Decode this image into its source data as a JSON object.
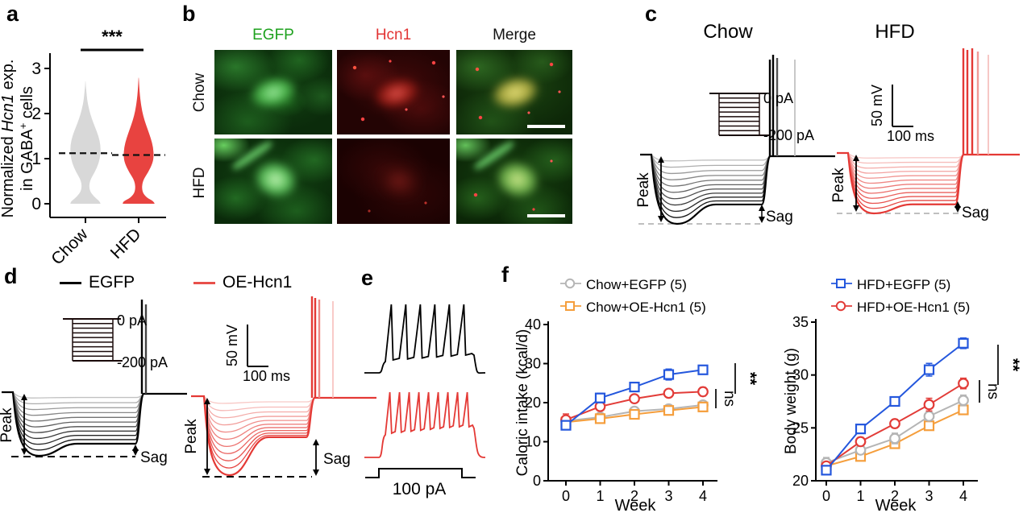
{
  "panel_a": {
    "label": "a",
    "ylabel_line1_pre": "Normalized ",
    "ylabel_gene": "Hcn1",
    "ylabel_line1_post": " exp.",
    "ylabel_line2_pre": "in GABA",
    "ylabel_line2_sup": "+",
    "ylabel_line2_post": " cells"
  },
  "panel_b": {
    "label": "b",
    "columns": [
      {
        "text": "EGFP",
        "color": "#1ea11e"
      },
      {
        "text": "Hcn1",
        "color": "#e23434"
      },
      {
        "text": "Merge",
        "color": "#111111"
      }
    ],
    "rows": [
      "Chow",
      "HFD"
    ]
  },
  "panel_c": {
    "label": "c",
    "title_left": "Chow",
    "title_right": "HFD",
    "step_label_top": "0 pA",
    "step_label_bottom": "-200 pA",
    "scale_vertical": "50 mV",
    "scale_horizontal": "100 ms",
    "peak_label": "Peak",
    "sag_label": "Sag",
    "trace_colors": {
      "left_light": "#d4d4d4",
      "left_dark": "#000000",
      "right_light": "#fad7d5",
      "right_dark": "#e43935"
    }
  },
  "panel_d": {
    "label": "d",
    "legend": [
      {
        "label": "EGFP",
        "color": "#000000"
      },
      {
        "label": "OE-Hcn1",
        "color": "#e8504b"
      }
    ],
    "step_label_top": "0 pA",
    "step_label_bottom": "-200 pA",
    "scale_vertical": "50 mV",
    "scale_horizontal": "100 ms",
    "peak_label": "Peak",
    "sag_label": "Sag",
    "trace_colors": {
      "left_light": "#d4d4d4",
      "left_dark": "#000000",
      "right_light": "#fad7d5",
      "right_dark": "#e43935"
    }
  },
  "panel_e": {
    "label": "e",
    "pulse_label": "100 pA",
    "trace_colors": {
      "top": "#000000",
      "bottom": "#e43935"
    }
  },
  "panel_f": {
    "label": "f"
  },
  "chart_data": [
    {
      "type": "violin",
      "ylabel": "Normalized Hcn1 exp. in GABA+ cells",
      "categories": [
        "Chow",
        "HFD"
      ],
      "colors": [
        "#d8d8d8",
        "#e84340"
      ],
      "medians": [
        1.12,
        1.08
      ],
      "ylim": [
        0,
        3
      ],
      "yticks": [
        0,
        1,
        2,
        3
      ],
      "significance": "***"
    },
    {
      "type": "line",
      "ylabel": "Caloric intake (kcal/d)",
      "xlabel": "Week",
      "x": [
        0,
        1,
        2,
        3,
        4
      ],
      "ylim": [
        0,
        40
      ],
      "yticks": [
        0,
        10,
        20,
        30,
        40
      ],
      "series": [
        {
          "name": "Chow+EGFP (5)",
          "marker": "circle",
          "color": "#b5b5b5",
          "values": [
            15.3,
            16.3,
            17.8,
            18.4,
            19.4
          ],
          "err": [
            1.0,
            0.5,
            0.8,
            0.5,
            0.7
          ]
        },
        {
          "name": "Chow+OE-Hcn1 (5)",
          "marker": "square",
          "color": "#f59e3c",
          "values": [
            15.0,
            15.9,
            17.0,
            18.0,
            18.9
          ],
          "err": [
            0.8,
            0.5,
            0.5,
            0.4,
            0.5
          ]
        },
        {
          "name": "HFD+EGFP (5)",
          "marker": "square",
          "color": "#2457dd",
          "values": [
            14.2,
            21.2,
            24.0,
            27.2,
            28.4
          ],
          "err": [
            0.9,
            1.2,
            0.9,
            1.4,
            0.9
          ]
        },
        {
          "name": "HFD+OE-Hcn1 (5)",
          "marker": "circle",
          "color": "#e23c38",
          "values": [
            15.6,
            19.0,
            21.0,
            22.4,
            22.8
          ],
          "err": [
            1.5,
            0.9,
            0.7,
            0.7,
            1.1
          ]
        }
      ],
      "annotations": [
        {
          "text": "ns",
          "between": [
            "HFD+OE-Hcn1 (5)",
            "Chow+EGFP (5)"
          ]
        },
        {
          "text": "**",
          "between": [
            "HFD+EGFP (5)",
            "HFD+OE-Hcn1 (5)"
          ]
        }
      ]
    },
    {
      "type": "line",
      "ylabel": "Body weight (g)",
      "xlabel": "Week",
      "x": [
        0,
        1,
        2,
        3,
        4
      ],
      "ylim": [
        20,
        35
      ],
      "yticks": [
        20,
        25,
        30,
        35
      ],
      "series": [
        {
          "name": "HFD+EGFP (5)",
          "marker": "square",
          "color": "#2457dd",
          "values": [
            21.0,
            24.9,
            27.5,
            30.5,
            33.0
          ],
          "err": [
            0.4,
            0.4,
            0.4,
            0.6,
            0.5
          ]
        },
        {
          "name": "HFD+OE-Hcn1 (5)",
          "marker": "circle",
          "color": "#e23c38",
          "values": [
            21.4,
            23.7,
            25.4,
            27.2,
            29.2
          ],
          "err": [
            0.3,
            0.4,
            0.4,
            0.6,
            0.5
          ]
        },
        {
          "name": "Chow+EGFP (5)",
          "marker": "circle",
          "color": "#b5b5b5",
          "values": [
            21.7,
            22.9,
            24.0,
            26.1,
            27.6
          ],
          "err": [
            0.5,
            0.3,
            0.5,
            0.4,
            0.5
          ]
        },
        {
          "name": "Chow+OE-Hcn1 (5)",
          "marker": "square",
          "color": "#f59e3c",
          "values": [
            21.4,
            22.3,
            23.5,
            25.2,
            26.7
          ],
          "err": [
            0.3,
            0.3,
            0.3,
            0.3,
            0.3
          ]
        }
      ],
      "annotations": [
        {
          "text": "ns",
          "between": [
            "HFD+OE-Hcn1 (5)",
            "Chow+EGFP (5)"
          ]
        },
        {
          "text": "**",
          "between": [
            "HFD+EGFP (5)",
            "HFD+OE-Hcn1 (5)"
          ]
        }
      ]
    }
  ]
}
